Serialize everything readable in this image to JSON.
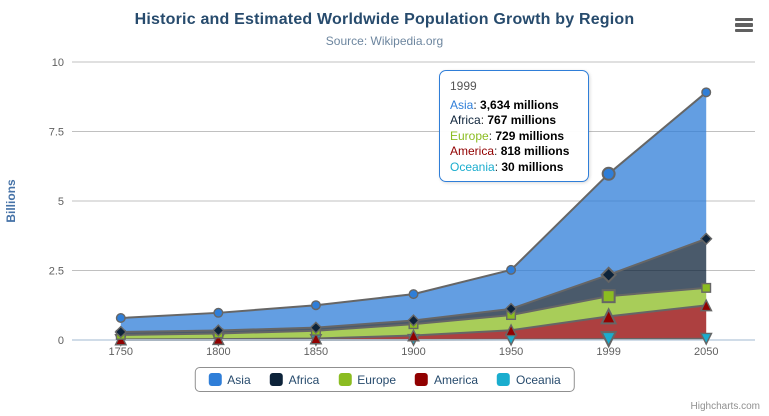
{
  "chart_data": {
    "type": "area",
    "stacking": "normal",
    "title": "Historic and Estimated Worldwide Population Growth by Region",
    "subtitle": "Source: Wikipedia.org",
    "categories": [
      "1750",
      "1800",
      "1850",
      "1900",
      "1950",
      "1999",
      "2050"
    ],
    "xlabel": "",
    "ylabel": "Billions",
    "ylim": [
      0,
      10
    ],
    "yticks": [
      0,
      2.5,
      5,
      7.5,
      10
    ],
    "grid": true,
    "legend_position": "bottom",
    "values_unit": "millions",
    "hover_index": 5,
    "series": [
      {
        "name": "Asia",
        "color": "#2f7ed8",
        "marker": "circle",
        "values": [
          502,
          635,
          809,
          947,
          1402,
          3634,
          5268
        ]
      },
      {
        "name": "Africa",
        "color": "#0d233a",
        "marker": "diamond",
        "values": [
          106,
          107,
          111,
          133,
          221,
          767,
          1766
        ]
      },
      {
        "name": "Europe",
        "color": "#8bbc21",
        "marker": "square",
        "values": [
          163,
          203,
          276,
          408,
          547,
          729,
          628
        ]
      },
      {
        "name": "America",
        "color": "#910000",
        "marker": "triangle",
        "values": [
          18,
          31,
          54,
          156,
          339,
          818,
          1201
        ]
      },
      {
        "name": "Oceania",
        "color": "#1aadce",
        "marker": "triangle-down",
        "values": [
          2,
          2,
          2,
          6,
          13,
          30,
          46
        ]
      }
    ],
    "line_color": "#666666",
    "axis_line_color": "#c0d0e0",
    "grid_color": "#c0c0c0"
  },
  "tooltip": {
    "header": "1999",
    "rows": [
      {
        "label": "Asia",
        "value": "3,634 millions"
      },
      {
        "label": "Africa",
        "value": "767 millions"
      },
      {
        "label": "Europe",
        "value": "729 millions"
      },
      {
        "label": "America",
        "value": "818 millions"
      },
      {
        "label": "Oceania",
        "value": "30 millions"
      }
    ]
  },
  "credits": {
    "label": "Highcharts.com"
  }
}
